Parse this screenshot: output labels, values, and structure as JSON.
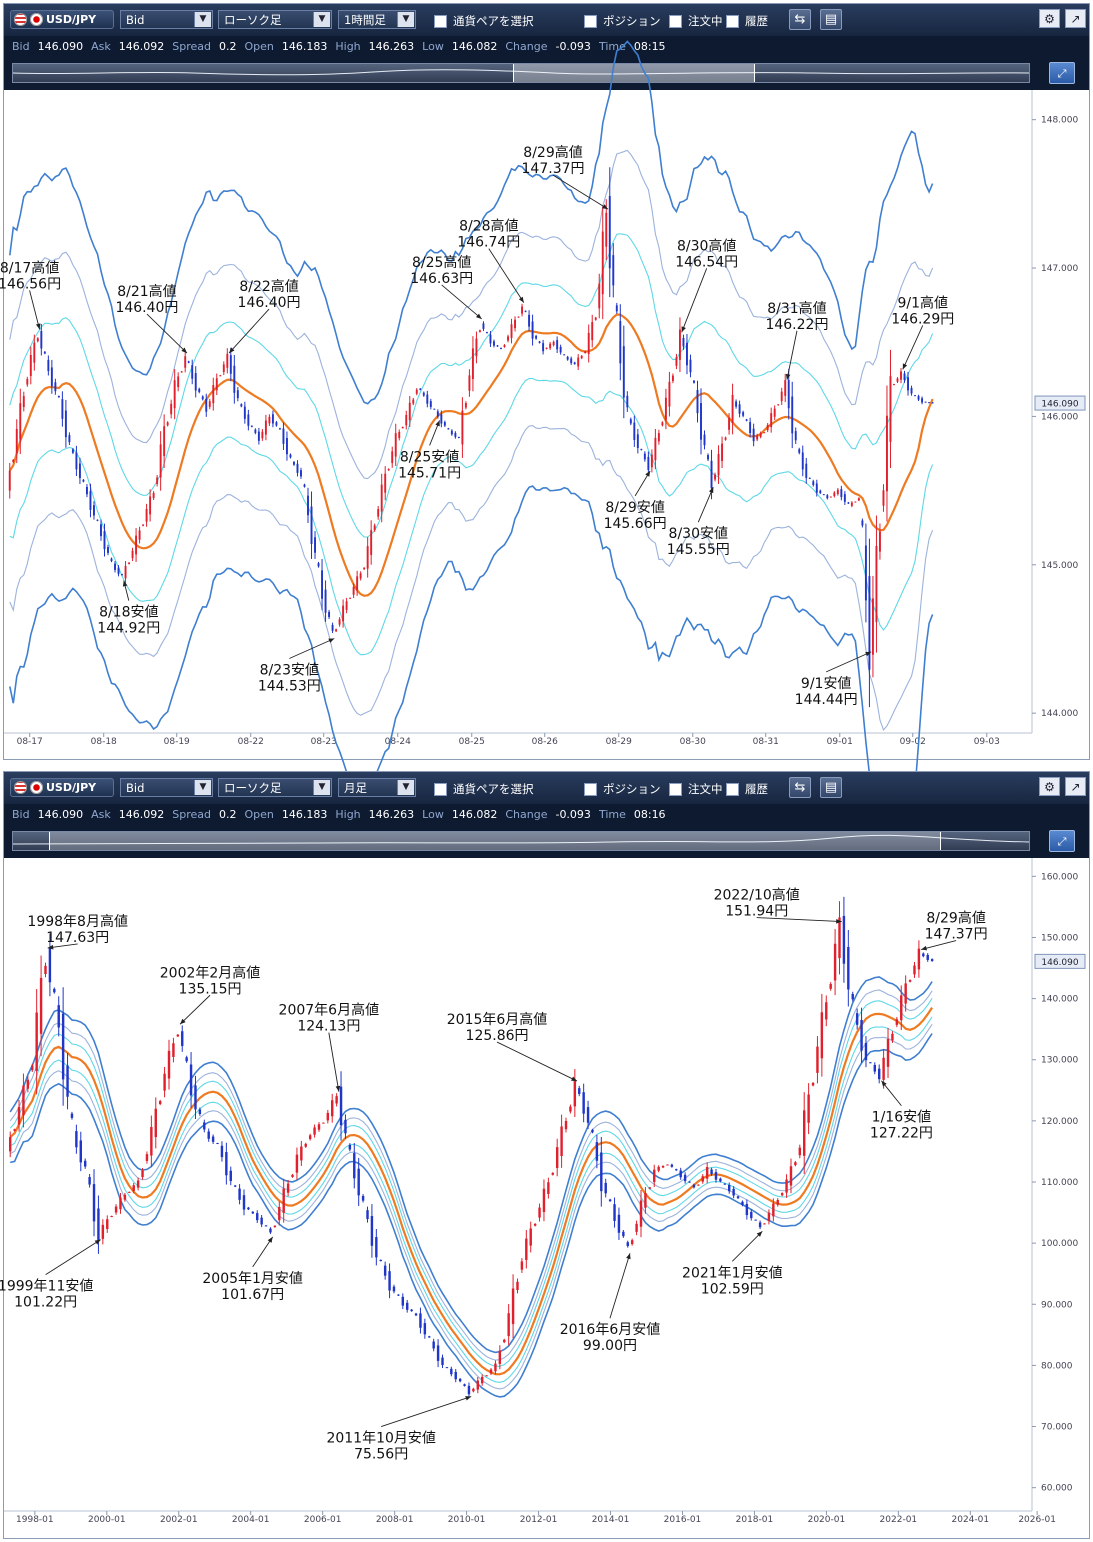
{
  "panels": [
    {
      "toolbar": {
        "pair": "USD/JPY",
        "price_type": "Bid",
        "chart_style": "ローソク足",
        "timeframe": "1時間足",
        "select_pair_label": "通貨ペアを選択",
        "position_label": "ポジション",
        "order_label": "注文中",
        "history_label": "履歴"
      },
      "quote": {
        "bid_label": "Bid",
        "bid": "146.090",
        "ask_label": "Ask",
        "ask": "146.092",
        "spread_label": "Spread",
        "spread": "0.2",
        "open_label": "Open",
        "open": "146.183",
        "high_label": "High",
        "high": "146.263",
        "low_label": "Low",
        "low": "146.082",
        "change_label": "Change",
        "change": "-0.093",
        "time_label": "Time",
        "time": "08:15"
      },
      "current_price_tag": "146.090"
    },
    {
      "toolbar": {
        "pair": "USD/JPY",
        "price_type": "Bid",
        "chart_style": "ローソク足",
        "timeframe": "月足",
        "select_pair_label": "通貨ペアを選択",
        "position_label": "ポジション",
        "order_label": "注文中",
        "history_label": "履歴"
      },
      "quote": {
        "bid_label": "Bid",
        "bid": "146.090",
        "ask_label": "Ask",
        "ask": "146.092",
        "spread_label": "Spread",
        "spread": "0.2",
        "open_label": "Open",
        "open": "146.183",
        "high_label": "High",
        "high": "146.263",
        "low_label": "Low",
        "low": "146.082",
        "change_label": "Change",
        "change": "-0.093",
        "time_label": "Time",
        "time": "08:16"
      },
      "current_price_tag": "146.090"
    }
  ],
  "colors": {
    "up": "#e0202c",
    "down": "#1f36c8",
    "ma": "#ee7a22",
    "band1": "#5fd8e6",
    "band2": "#9cb3dc",
    "band3": "#3f7fd0"
  },
  "chart_data": [
    {
      "type": "candlestick",
      "x_ticks": [
        "08-17",
        "08-18",
        "08-19",
        "08-22",
        "08-23",
        "08-24",
        "08-25",
        "08-26",
        "08-29",
        "08-30",
        "08-31",
        "09-01",
        "09-02",
        "09-03"
      ],
      "y_ticks": [
        "148.000",
        "147.000",
        "146.000",
        "145.000",
        "144.000"
      ],
      "ylim": [
        143.9,
        148.2
      ],
      "price_path": [
        145.5,
        145.9,
        146.3,
        146.56,
        146.3,
        146.1,
        145.8,
        145.6,
        145.4,
        145.2,
        145.0,
        144.92,
        145.1,
        145.3,
        145.5,
        145.9,
        146.2,
        146.4,
        146.2,
        146.05,
        146.25,
        146.4,
        146.1,
        145.95,
        145.85,
        146.0,
        145.9,
        145.7,
        145.6,
        145.2,
        144.8,
        144.53,
        144.7,
        144.85,
        145.0,
        145.3,
        145.6,
        145.85,
        146.0,
        146.2,
        146.1,
        146.0,
        145.9,
        145.85,
        146.3,
        146.63,
        146.5,
        146.45,
        146.6,
        146.74,
        146.55,
        146.45,
        146.5,
        146.4,
        146.35,
        146.45,
        146.7,
        147.37,
        146.6,
        146.0,
        145.8,
        145.66,
        145.9,
        146.2,
        146.54,
        146.3,
        145.9,
        145.55,
        145.8,
        146.1,
        146.0,
        145.85,
        145.9,
        146.05,
        146.22,
        145.8,
        145.6,
        145.5,
        145.45,
        145.5,
        145.4,
        145.45,
        144.44,
        145.3,
        146.2,
        146.29,
        146.15,
        146.1,
        146.09
      ],
      "annotations": [
        {
          "label": "8/17高値",
          "value": "146.56円"
        },
        {
          "label": "8/18安値",
          "value": "144.92円"
        },
        {
          "label": "8/21高値",
          "value": "146.40円"
        },
        {
          "label": "8/22高値",
          "value": "146.40円"
        },
        {
          "label": "8/23安値",
          "value": "144.53円"
        },
        {
          "label": "8/25高値",
          "value": "146.63円"
        },
        {
          "label": "8/25安値",
          "value": "145.71円"
        },
        {
          "label": "8/28高値",
          "value": "146.74円"
        },
        {
          "label": "8/29高値",
          "value": "147.37円"
        },
        {
          "label": "8/29安値",
          "value": "145.66円"
        },
        {
          "label": "8/30高値",
          "value": "146.54円"
        },
        {
          "label": "8/30安値",
          "value": "145.55円"
        },
        {
          "label": "8/31高値",
          "value": "146.22円"
        },
        {
          "label": "9/1高値",
          "value": "146.29円"
        },
        {
          "label": "9/1安値",
          "value": "144.44円"
        }
      ]
    },
    {
      "type": "candlestick",
      "x_ticks": [
        "1998-01",
        "2000-01",
        "2002-01",
        "2004-01",
        "2006-01",
        "2008-01",
        "2010-01",
        "2012-01",
        "2014-01",
        "2016-01",
        "2018-01",
        "2020-01",
        "2022-01",
        "2024-01",
        "2026-01"
      ],
      "y_ticks": [
        "160.000",
        "150.000",
        "140.000",
        "130.000",
        "120.000",
        "110.000",
        "100.000",
        "90.000",
        "80.000",
        "70.000",
        "60.000"
      ],
      "ylim": [
        57,
        163
      ],
      "price_path": [
        115,
        122,
        130,
        147.63,
        135,
        118,
        112,
        101.22,
        105,
        108,
        110,
        118,
        128,
        135.15,
        125,
        118,
        116,
        110,
        106,
        104,
        101.67,
        108,
        114,
        118,
        120,
        124.13,
        114,
        106,
        98,
        93,
        90,
        88,
        84,
        80,
        78,
        75.56,
        78,
        80,
        88,
        98,
        104,
        110,
        118,
        125.86,
        120,
        110,
        104,
        99.0,
        106,
        112,
        113,
        111,
        109,
        112,
        110,
        108,
        105,
        102.59,
        106,
        110,
        116,
        128,
        140,
        151.94,
        138,
        130,
        127.22,
        135,
        142,
        147.37,
        146.09
      ],
      "annotations": [
        {
          "label": "1998年8月高値",
          "value": "147.63円"
        },
        {
          "label": "1999年11安値",
          "value": "101.22円"
        },
        {
          "label": "2002年2月高値",
          "value": "135.15円"
        },
        {
          "label": "2005年1月安値",
          "value": "101.67円"
        },
        {
          "label": "2007年6月高値",
          "value": "124.13円"
        },
        {
          "label": "2011年10月安値",
          "value": "75.56円"
        },
        {
          "label": "2015年6月高値",
          "value": "125.86円"
        },
        {
          "label": "2016年6月安値",
          "value": "99.00円"
        },
        {
          "label": "2021年1月安値",
          "value": "102.59円"
        },
        {
          "label": "2022/10高値",
          "value": "151.94円"
        },
        {
          "label": "1/16安値",
          "value": "127.22円"
        },
        {
          "label": "8/29高値",
          "value": "147.37円"
        }
      ]
    }
  ]
}
